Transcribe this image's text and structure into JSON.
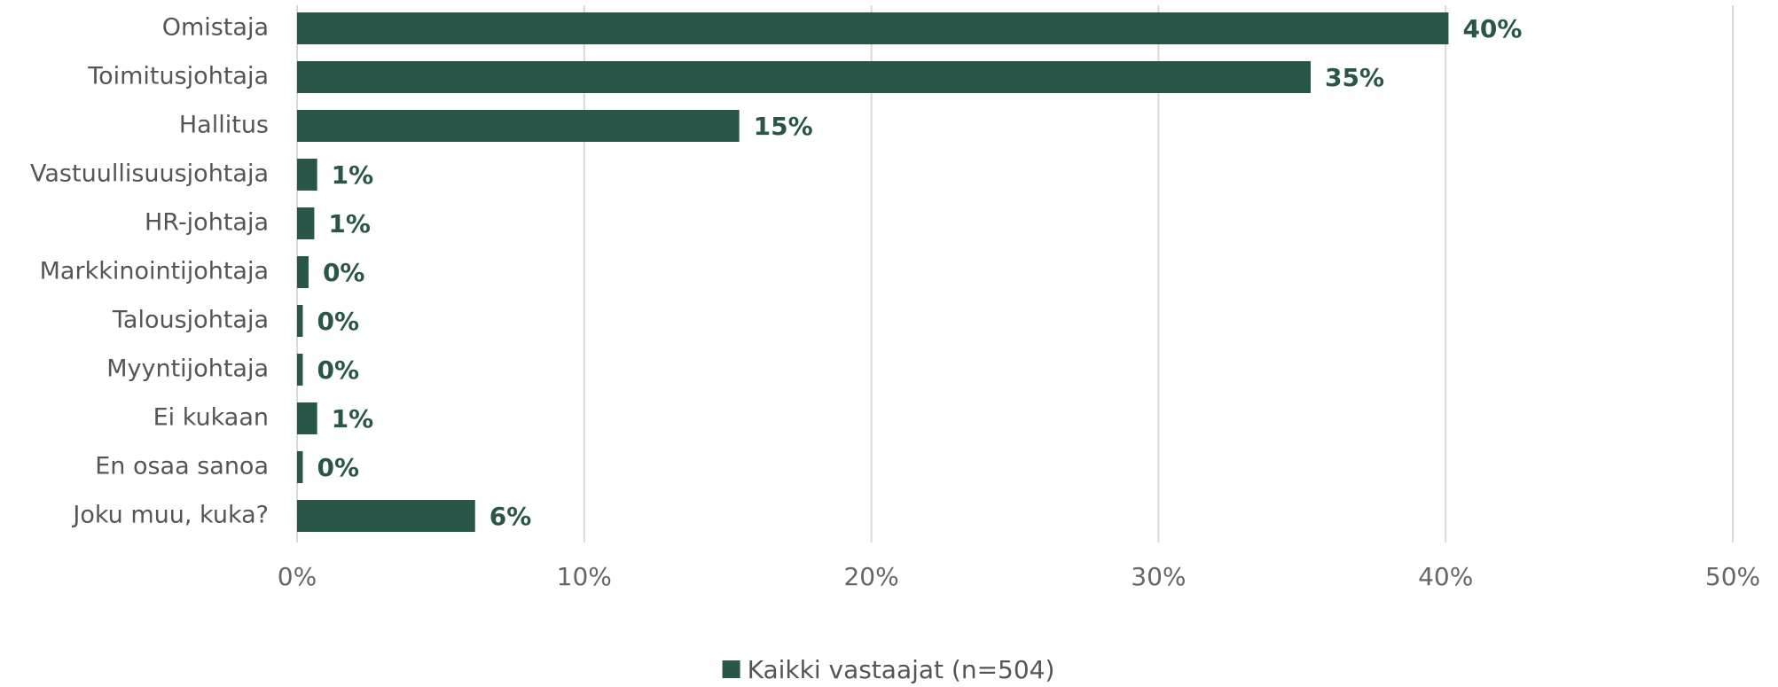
{
  "chart_data": {
    "type": "bar",
    "orientation": "horizontal",
    "categories": [
      "Omistaja",
      "Toimitusjohtaja",
      "Hallitus",
      "Vastuullisuusjohtaja",
      "HR-johtaja",
      "Markkinointijohtaja",
      "Talousjohtaja",
      "Myyntijohtaja",
      "Ei kukaan",
      "En osaa sanoa",
      "Joku muu, kuka?"
    ],
    "series": [
      {
        "name": "Kaikki vastaajat (n=504)",
        "color": "#2a5649",
        "values": [
          40.1,
          35.3,
          15.4,
          0.7,
          0.6,
          0.4,
          0.2,
          0.2,
          0.7,
          0.2,
          6.2
        ],
        "value_labels": [
          "40%",
          "35%",
          "15%",
          "1%",
          "1%",
          "0%",
          "0%",
          "0%",
          "1%",
          "0%",
          "6%"
        ]
      }
    ],
    "xlim": [
      0,
      50
    ],
    "xticks": [
      {
        "value": 0,
        "label": "0%"
      },
      {
        "value": 10,
        "label": "10%"
      },
      {
        "value": 20,
        "label": "20%"
      },
      {
        "value": 30,
        "label": "30%"
      },
      {
        "value": 40,
        "label": "40%"
      },
      {
        "value": 50,
        "label": "50%"
      }
    ],
    "grid": true,
    "legend": "bottom"
  }
}
